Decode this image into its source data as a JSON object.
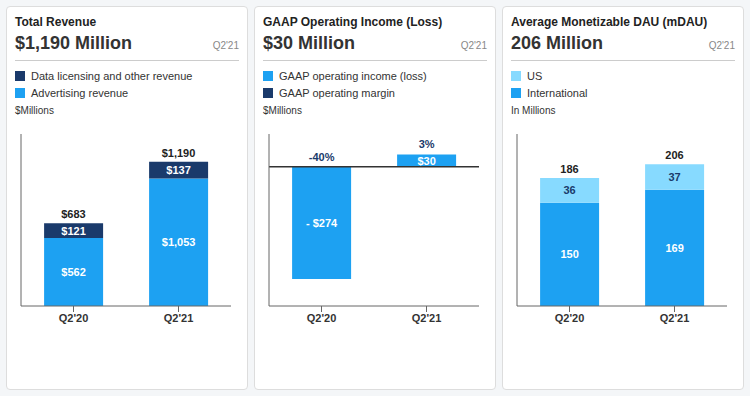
{
  "chart_data": [
    {
      "type": "bar",
      "title": "Total Revenue",
      "subtitle": "$1,190 Million",
      "annotations": [
        "Q2'21"
      ],
      "ylabel": "$Millions",
      "categories": [
        "Q2'20",
        "Q2'21"
      ],
      "stacked": true,
      "series": [
        {
          "name": "Advertising revenue",
          "color": "#1DA1F2",
          "values": [
            562,
            1053
          ],
          "value_labels": [
            "$562",
            "$1,053"
          ]
        },
        {
          "name": "Data licensing and other revenue",
          "color": "#1a3a6b",
          "values": [
            121,
            137
          ],
          "value_labels": [
            "$121",
            "$137"
          ]
        }
      ],
      "totals": {
        "values": [
          683,
          1190
        ],
        "value_labels": [
          "$683",
          "$1,190"
        ]
      },
      "ylim": [
        0,
        1420
      ],
      "data_labels": true,
      "tick_labels": "x",
      "grid": false,
      "legend": "top left"
    },
    {
      "type": "bar",
      "title": "GAAP Operating Income (Loss)",
      "subtitle": "$30 Million",
      "annotations": [
        "Q2'21"
      ],
      "ylabel": "$Millions",
      "categories": [
        "Q2'20",
        "Q2'21"
      ],
      "stacked": false,
      "series": [
        {
          "name": "GAAP operating income (loss)",
          "color": "#1DA1F2",
          "values": [
            -274,
            30
          ],
          "value_labels": [
            "- $274",
            "$30"
          ]
        }
      ],
      "margin": {
        "name": "GAAP operating margin",
        "color": "#1a3a6b",
        "value_labels": [
          "-40%",
          "3%"
        ]
      },
      "ylim": [
        -340,
        80
      ],
      "data_labels": true,
      "tick_labels": "x",
      "grid": false,
      "legend": "top left"
    },
    {
      "type": "bar",
      "title": "Average Monetizable DAU (mDAU)",
      "subtitle": "206 Million",
      "annotations": [
        "Q2'21"
      ],
      "ylabel": "In Millions",
      "categories": [
        "Q2'20",
        "Q2'21"
      ],
      "stacked": true,
      "series": [
        {
          "name": "International",
          "color": "#1DA1F2",
          "values": [
            150,
            169
          ]
        },
        {
          "name": "US",
          "color": "#87DAFF",
          "values": [
            36,
            37
          ]
        }
      ],
      "totals": {
        "values": [
          186,
          206
        ]
      },
      "ylim": [
        0,
        250
      ],
      "data_labels": true,
      "tick_labels": "x",
      "grid": false,
      "legend": "top left"
    }
  ]
}
